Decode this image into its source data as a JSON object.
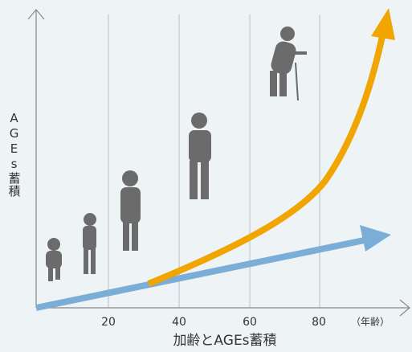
{
  "x_axis": {
    "ticks": [
      "20",
      "40",
      "60",
      "80"
    ],
    "unit": "（年齢）",
    "title": "加齢とAGEs蓄積"
  },
  "y_axis": {
    "title": "AGEs蓄積"
  }
}
